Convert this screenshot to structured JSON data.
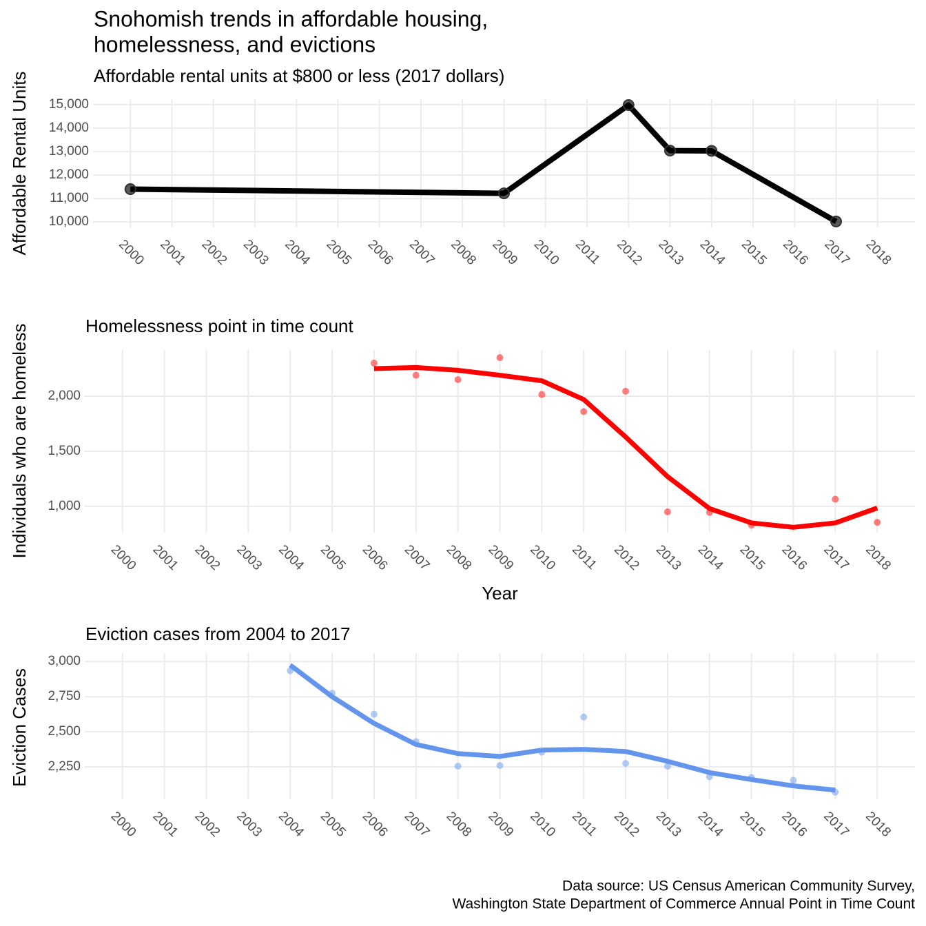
{
  "title": [
    "Snohomish trends in affordable housing,",
    "homelessness, and evictions"
  ],
  "caption": [
    "Data source: US Census American Community Survey,",
    "Washington State Department of Commerce Annual Point in Time Count"
  ],
  "chart_data": [
    {
      "type": "line",
      "subtitle": "Affordable rental units at $800 or less (2017 dollars)",
      "y_label": "Affordable Rental Units",
      "xlim": [
        1999.1,
        2018.9
      ],
      "xticks": [
        2000,
        2001,
        2002,
        2003,
        2004,
        2005,
        2006,
        2007,
        2008,
        2009,
        2010,
        2011,
        2012,
        2013,
        2014,
        2015,
        2016,
        2017,
        2018
      ],
      "ylim": [
        9770,
        15230
      ],
      "yticks": [
        {
          "value": 10000,
          "label": "10,000"
        },
        {
          "value": 11000,
          "label": "11,000"
        },
        {
          "value": 12000,
          "label": "12,000"
        },
        {
          "value": 13000,
          "label": "13,000"
        },
        {
          "value": 14000,
          "label": "14,000"
        },
        {
          "value": 15000,
          "label": "15,000"
        }
      ],
      "grid": true,
      "series": [
        {
          "mode": "lines+markers",
          "color": "#000000",
          "x": [
            2000,
            2009,
            2012,
            2013,
            2014,
            2017
          ],
          "values": [
            11400,
            11220,
            14980,
            13040,
            13030,
            10020
          ]
        }
      ]
    },
    {
      "type": "line",
      "subtitle": "Homelessness point in time count",
      "y_label": "Individuals who are homeless",
      "x_label": "Year",
      "xlim": [
        1999.1,
        2018.9
      ],
      "xticks": [
        2000,
        2001,
        2002,
        2003,
        2004,
        2005,
        2006,
        2007,
        2008,
        2009,
        2010,
        2011,
        2012,
        2013,
        2014,
        2015,
        2016,
        2017,
        2018
      ],
      "ylim": [
        762,
        2419
      ],
      "yticks": [
        {
          "value": 1000,
          "label": "1,000"
        },
        {
          "value": 1500,
          "label": "1,500"
        },
        {
          "value": 2000,
          "label": "2,000"
        }
      ],
      "grid": true,
      "series": [
        {
          "mode": "markers",
          "color": "#ff0000",
          "x": [
            2006,
            2007,
            2008,
            2009,
            2010,
            2011,
            2012,
            2013,
            2014,
            2015,
            2017,
            2018
          ],
          "values": [
            2300,
            2190,
            2150,
            2350,
            2015,
            1860,
            2045,
            950,
            945,
            830,
            1065,
            855
          ]
        },
        {
          "mode": "smooth",
          "color": "#ff0000",
          "x": [
            2006,
            2007,
            2008,
            2009,
            2010,
            2011,
            2012,
            2013,
            2014,
            2015,
            2016,
            2017,
            2018
          ],
          "values": [
            2250,
            2260,
            2235,
            2190,
            2140,
            1970,
            1630,
            1270,
            980,
            850,
            810,
            850,
            985
          ]
        }
      ]
    },
    {
      "type": "line",
      "subtitle": "Eviction cases from 2004 to 2017",
      "y_label": "Eviction Cases",
      "xlim": [
        1999.1,
        2018.9
      ],
      "xticks": [
        2000,
        2001,
        2002,
        2003,
        2004,
        2005,
        2006,
        2007,
        2008,
        2009,
        2010,
        2011,
        2012,
        2013,
        2014,
        2015,
        2016,
        2017,
        2018
      ],
      "ylim": [
        2020,
        3060
      ],
      "yticks": [
        {
          "value": 2250,
          "label": "2,250"
        },
        {
          "value": 2500,
          "label": "2,500"
        },
        {
          "value": 2750,
          "label": "2,750"
        },
        {
          "value": 3000,
          "label": "3,000"
        }
      ],
      "grid": true,
      "series": [
        {
          "mode": "markers",
          "color": "#6495ed",
          "x": [
            2004,
            2005,
            2006,
            2007,
            2008,
            2009,
            2010,
            2011,
            2012,
            2013,
            2014,
            2015,
            2016,
            2017
          ],
          "values": [
            2935,
            2775,
            2625,
            2430,
            2255,
            2260,
            2355,
            2605,
            2275,
            2255,
            2180,
            2175,
            2155,
            2070
          ]
        },
        {
          "mode": "smooth",
          "color": "#6495ed",
          "x": [
            2004,
            2005,
            2006,
            2007,
            2008,
            2009,
            2010,
            2011,
            2012,
            2013,
            2014,
            2015,
            2016,
            2017
          ],
          "values": [
            2975,
            2750,
            2560,
            2410,
            2345,
            2325,
            2370,
            2375,
            2360,
            2290,
            2210,
            2160,
            2115,
            2085
          ]
        }
      ]
    }
  ]
}
